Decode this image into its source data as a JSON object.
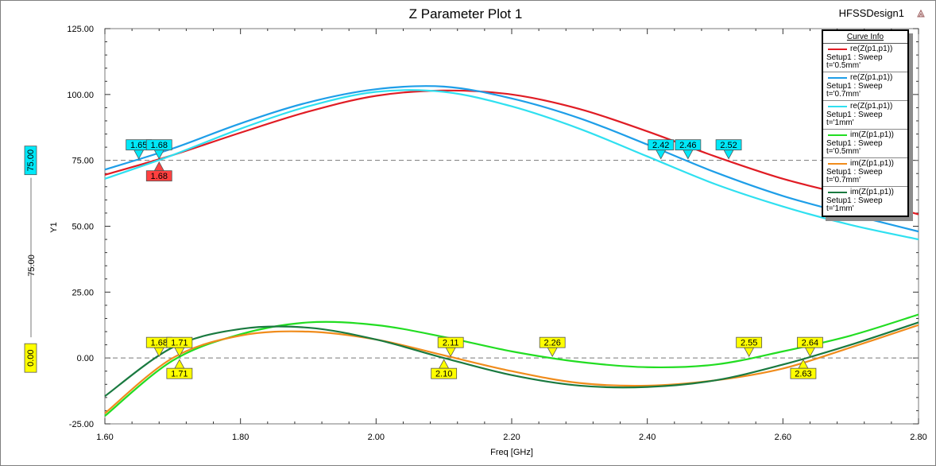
{
  "header": {
    "title": "Z Parameter Plot 1",
    "design_name": "HFSSDesign1"
  },
  "legend": {
    "title": "Curve Info",
    "items": [
      {
        "name": "re(Z(p1,p1))",
        "setup": "Setup1 : Sweep",
        "param": "t='0.5mm'",
        "color": "#e01c24"
      },
      {
        "name": "re(Z(p1,p1))",
        "setup": "Setup1 : Sweep",
        "param": "t='0.7mm'",
        "color": "#1e9ee8"
      },
      {
        "name": "re(Z(p1,p1))",
        "setup": "Setup1 : Sweep",
        "param": "t='1mm'",
        "color": "#2fe0f0"
      },
      {
        "name": "im(Z(p1,p1))",
        "setup": "Setup1 : Sweep",
        "param": "t='0.5mm'",
        "color": "#22dd22"
      },
      {
        "name": "im(Z(p1,p1))",
        "setup": "Setup1 : Sweep",
        "param": "t='0.7mm'",
        "color": "#f08c1c"
      },
      {
        "name": "im(Z(p1,p1))",
        "setup": "Setup1 : Sweep",
        "param": "t='1mm'",
        "color": "#1a7a40"
      }
    ]
  },
  "chart_data": {
    "type": "line",
    "title": "Z Parameter Plot 1",
    "xlabel": "Freq [GHz]",
    "ylabel": "Y1",
    "xlim": [
      1.6,
      2.8
    ],
    "ylim": [
      -25,
      125
    ],
    "x_ticks": [
      "1.60",
      "1.80",
      "2.00",
      "2.20",
      "2.40",
      "2.60",
      "2.80"
    ],
    "y_ticks": [
      "-25.00",
      "0.00",
      "25.00",
      "50.00",
      "75.00",
      "100.00",
      "125.00"
    ],
    "grid": false,
    "legend_position": "top-right",
    "x": [
      1.6,
      1.7,
      1.8,
      1.9,
      2.0,
      2.1,
      2.2,
      2.3,
      2.4,
      2.5,
      2.6,
      2.7,
      2.8
    ],
    "series": [
      {
        "name": "re(Z(p1,p1)) Setup1 : Sweep t='0.5mm'",
        "color": "#e01c24",
        "values": [
          69.5,
          77,
          85.5,
          93.5,
          99.5,
          101.5,
          100,
          94.5,
          86,
          76.5,
          68,
          61.5,
          54.5
        ]
      },
      {
        "name": "re(Z(p1,p1)) Setup1 : Sweep t='0.7mm'",
        "color": "#1e9ee8",
        "values": [
          71.5,
          79.5,
          89,
          97,
          102,
          103,
          98.5,
          91,
          81,
          70.5,
          61.5,
          54.5,
          48
        ]
      },
      {
        "name": "re(Z(p1,p1)) Setup1 : Sweep t='1mm'",
        "color": "#2fe0f0",
        "values": [
          68,
          77,
          87,
          95.5,
          101,
          101,
          95.5,
          87,
          76.5,
          66,
          57.5,
          50.5,
          45
        ]
      },
      {
        "name": "im(Z(p1,p1)) Setup1 : Sweep t='0.5mm'",
        "color": "#22dd22",
        "values": [
          -22,
          -1,
          9,
          13.5,
          12.5,
          8,
          2.5,
          -1.5,
          -3.5,
          -2.5,
          2.5,
          8.5,
          16.5
        ]
      },
      {
        "name": "im(Z(p1,p1)) Setup1 : Sweep t='0.7mm'",
        "color": "#f08c1c",
        "values": [
          -21,
          0,
          8.5,
          10,
          7,
          1,
          -5,
          -9.5,
          -10.5,
          -8.5,
          -4,
          4,
          12.5
        ]
      },
      {
        "name": "im(Z(p1,p1)) Setup1 : Sweep t='1mm'",
        "color": "#1a7a40",
        "values": [
          -14.5,
          4,
          11,
          11.5,
          7,
          0,
          -6.5,
          -10.5,
          -11,
          -8.5,
          -2.5,
          5,
          13.5
        ]
      }
    ],
    "reference_lines": [
      {
        "value": 75,
        "label": "75.00",
        "color": "#00e8f8"
      },
      {
        "value": 0,
        "label": "0.00",
        "color": "#ffff00"
      }
    ],
    "side_label": "75.00",
    "markers": [
      {
        "x": 1.65,
        "label": "1.65",
        "color": "#00e8f8",
        "pos": "above",
        "ref": 75
      },
      {
        "x": 1.68,
        "label": "1.68",
        "color": "#00e8f8",
        "pos": "above",
        "ref": 75
      },
      {
        "x": 1.68,
        "label": "1.68",
        "color": "#ff4040",
        "pos": "below",
        "ref": 75
      },
      {
        "x": 2.42,
        "label": "2.42",
        "color": "#00e8f8",
        "pos": "above",
        "ref": 75
      },
      {
        "x": 2.46,
        "label": "2.46",
        "color": "#00e8f8",
        "pos": "above",
        "ref": 75
      },
      {
        "x": 2.52,
        "label": "2.52",
        "color": "#00e8f8",
        "pos": "above",
        "ref": 75
      },
      {
        "x": 1.68,
        "label": "1.68",
        "color": "#ffff00",
        "pos": "above",
        "ref": 0
      },
      {
        "x": 1.71,
        "label": "1.71",
        "color": "#ffff00",
        "pos": "above",
        "ref": 0
      },
      {
        "x": 1.71,
        "label": "1.71",
        "color": "#ffff00",
        "pos": "below",
        "ref": 0
      },
      {
        "x": 2.11,
        "label": "2.11",
        "color": "#ffff00",
        "pos": "above",
        "ref": 0
      },
      {
        "x": 2.1,
        "label": "2.10",
        "color": "#ffff00",
        "pos": "below",
        "ref": 0
      },
      {
        "x": 2.26,
        "label": "2.26",
        "color": "#ffff00",
        "pos": "above",
        "ref": 0
      },
      {
        "x": 2.55,
        "label": "2.55",
        "color": "#ffff00",
        "pos": "above",
        "ref": 0
      },
      {
        "x": 2.64,
        "label": "2.64",
        "color": "#ffff00",
        "pos": "above",
        "ref": 0
      },
      {
        "x": 2.63,
        "label": "2.63",
        "color": "#ffff00",
        "pos": "below",
        "ref": 0
      }
    ]
  }
}
